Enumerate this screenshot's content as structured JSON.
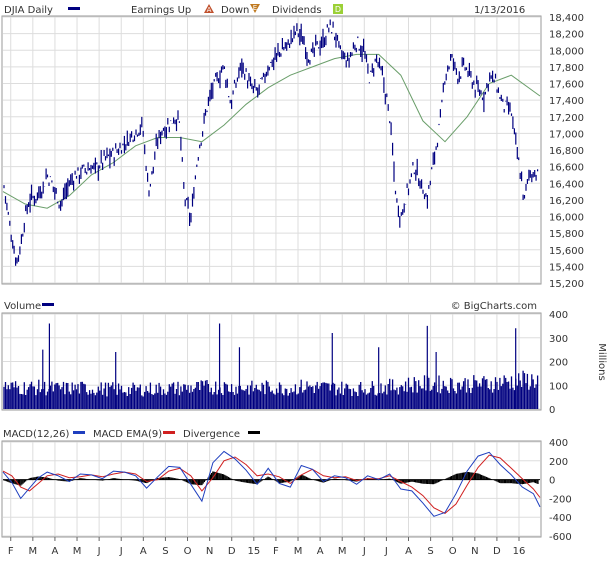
{
  "header": {
    "symbol_label": "DJIA Daily",
    "earnings_up_label": "Earnings Up",
    "earnings_up_glyph": "A",
    "down_label": "Down",
    "down_glyph": "E",
    "dividends_label": "Dividends",
    "dividends_glyph": "D",
    "date": "1/13/2016"
  },
  "volume_header": {
    "label": "Volume",
    "watermark": "© BigCharts.com"
  },
  "macd_header": {
    "macd_label": "MACD(12,26)",
    "ema_label": "MACD EMA(9)",
    "divergence_label": "Divergence"
  },
  "colors": {
    "price": "#000080",
    "ma": "#6a9e6a",
    "volume": "#000080",
    "macd": "#1f3fbf",
    "ema": "#d02020",
    "divergence": "#000000",
    "grid": "#dddddd",
    "border": "#999999",
    "earnings_up": "#c0502c",
    "down": "#c07a20",
    "dividends": "#9bd036"
  },
  "chart_data": [
    {
      "type": "line",
      "title": "DJIA Daily",
      "series_kind": "ohlc-bars + moving average",
      "ylim": [
        15200,
        18400
      ],
      "y_ticks": [
        15200,
        15400,
        15600,
        15800,
        16000,
        16200,
        16400,
        16600,
        16800,
        17000,
        17200,
        17400,
        17600,
        17800,
        18000,
        18200,
        18400
      ],
      "y_tick_labels": [
        "15,200",
        "15,400",
        "15,600",
        "15,800",
        "16,000",
        "16,200",
        "16,400",
        "16,600",
        "16,800",
        "17,000",
        "17,200",
        "17,400",
        "17,600",
        "17,800",
        "18,000",
        "18,200",
        "18,400"
      ],
      "x_tick_labels": [
        "F",
        "M",
        "A",
        "M",
        "J",
        "J",
        "A",
        "S",
        "O",
        "N",
        "D",
        "15",
        "F",
        "M",
        "A",
        "M",
        "J",
        "J",
        "A",
        "S",
        "O",
        "N",
        "D",
        "16"
      ],
      "grid": true,
      "series": [
        {
          "name": "price",
          "x": [
            0,
            0.3,
            0.6,
            0.8,
            1,
            1.2,
            1.5,
            1.8,
            2,
            2.3,
            2.6,
            3,
            3.3,
            3.6,
            4,
            4.3,
            4.6,
            5,
            5.3,
            5.6,
            5.9,
            6.1,
            6.3,
            6.6,
            6.8,
            7,
            7.2,
            7.5,
            7.8,
            8,
            8.2,
            8.5,
            8.8,
            9,
            9.3,
            9.6,
            10,
            10.3,
            10.6,
            10.8,
            11,
            11.2,
            11.5,
            11.8,
            12,
            12.3,
            12.6,
            13,
            13.3,
            13.6,
            13.9,
            14.2,
            14.5,
            14.8,
            15,
            15.3,
            15.6,
            16,
            16.3,
            16.6,
            16.9,
            17.2,
            17.5,
            17.8,
            18,
            18.3,
            18.6,
            18.9,
            19.2,
            19.5,
            19.8,
            20,
            20.3,
            20.6,
            20.9,
            21.2,
            21.5,
            21.8,
            22,
            22.3,
            22.6,
            23,
            23.3,
            23.6,
            23.8,
            24,
            24.3
          ],
          "y": [
            16450,
            15900,
            15450,
            15650,
            16000,
            16200,
            16250,
            16350,
            16500,
            16350,
            16150,
            16400,
            16500,
            16550,
            16580,
            16600,
            16700,
            16750,
            16820,
            16900,
            17000,
            17050,
            17100,
            16300,
            16600,
            16900,
            17050,
            17100,
            17200,
            17100,
            16250,
            15950,
            16700,
            17000,
            17400,
            17600,
            17800,
            17350,
            17650,
            17850,
            17700,
            17550,
            17500,
            17650,
            17800,
            17900,
            18000,
            18100,
            18250,
            18100,
            17900,
            18050,
            18100,
            18300,
            18200,
            17950,
            17850,
            18100,
            18000,
            17650,
            17900,
            17650,
            17200,
            16200,
            16000,
            16300,
            16600,
            16400,
            16200,
            16700,
            17150,
            17700,
            17900,
            17700,
            17800,
            17650,
            17500,
            17450,
            17700,
            17600,
            17350,
            17250,
            16700,
            16200,
            16500,
            16550,
            16450
          ]
        },
        {
          "name": "moving average",
          "x": [
            0,
            1,
            2,
            3,
            4,
            5,
            6,
            7,
            8,
            9,
            10,
            11,
            12,
            13,
            14,
            15,
            16,
            17,
            18,
            19,
            20,
            21,
            22,
            23,
            24.3
          ],
          "y": [
            16300,
            16150,
            16100,
            16250,
            16500,
            16650,
            16850,
            16950,
            16950,
            16900,
            17100,
            17350,
            17550,
            17700,
            17800,
            17900,
            17950,
            17950,
            17700,
            17150,
            16900,
            17200,
            17600,
            17700,
            17450
          ]
        }
      ]
    },
    {
      "type": "bar",
      "title": "Volume",
      "ylabel": "Millions",
      "ylim": [
        0,
        400
      ],
      "y_ticks": [
        0,
        100,
        200,
        300,
        400
      ],
      "y_tick_labels": [
        "0",
        "100",
        "200",
        "300",
        "400"
      ],
      "baseline": [
        100,
        95,
        95,
        90,
        92,
        90,
        88,
        85,
        88,
        90,
        92,
        95,
        98,
        95,
        92,
        95,
        92,
        100,
        95,
        92,
        90,
        95,
        100,
        110,
        110,
        108,
        110,
        112,
        120,
        125,
        130
      ],
      "spikes": [
        {
          "x": 1.8,
          "value": 250
        },
        {
          "x": 2.1,
          "value": 360
        },
        {
          "x": 5.1,
          "value": 240
        },
        {
          "x": 9.8,
          "value": 360
        },
        {
          "x": 10.7,
          "value": 260
        },
        {
          "x": 14.9,
          "value": 320
        },
        {
          "x": 17.0,
          "value": 260
        },
        {
          "x": 19.2,
          "value": 350
        },
        {
          "x": 19.6,
          "value": 240
        },
        {
          "x": 23.2,
          "value": 340
        }
      ]
    },
    {
      "type": "line",
      "title": "MACD",
      "ylim": [
        -600,
        400
      ],
      "y_ticks": [
        -600,
        -400,
        -200,
        0,
        200,
        400
      ],
      "y_tick_labels": [
        "-600",
        "-400",
        "-200",
        "0",
        "200",
        "400"
      ],
      "series": [
        {
          "name": "MACD(12,26)",
          "x": [
            0,
            0.4,
            0.8,
            1.2,
            1.6,
            2,
            2.5,
            3,
            3.5,
            4,
            4.5,
            5,
            5.5,
            6,
            6.5,
            7,
            7.5,
            8,
            8.5,
            9,
            9.5,
            10,
            10.5,
            11,
            11.5,
            12,
            12.5,
            13,
            13.5,
            14,
            14.5,
            15,
            15.5,
            16,
            16.5,
            17,
            17.5,
            18,
            18.5,
            19,
            19.5,
            20,
            20.5,
            21,
            21.5,
            22,
            22.5,
            23,
            23.5,
            24,
            24.3
          ],
          "y": [
            80,
            -30,
            -200,
            -90,
            20,
            80,
            40,
            -20,
            60,
            50,
            10,
            90,
            80,
            40,
            -90,
            30,
            140,
            130,
            -50,
            -230,
            180,
            300,
            220,
            100,
            -50,
            120,
            -40,
            -80,
            150,
            110,
            -20,
            40,
            20,
            -50,
            40,
            0,
            60,
            -100,
            -120,
            -250,
            -390,
            -350,
            -150,
            90,
            250,
            290,
            160,
            50,
            -80,
            -150,
            -290
          ]
        },
        {
          "name": "MACD EMA(9)",
          "x": [
            0,
            0.4,
            0.8,
            1.2,
            1.6,
            2,
            2.5,
            3,
            3.5,
            4,
            4.5,
            5,
            5.5,
            6,
            6.5,
            7,
            7.5,
            8,
            8.5,
            9,
            9.5,
            10,
            10.5,
            11,
            11.5,
            12,
            12.5,
            13,
            13.5,
            14,
            14.5,
            15,
            15.5,
            16,
            16.5,
            17,
            17.5,
            18,
            18.5,
            19,
            19.5,
            20,
            20.5,
            21,
            21.5,
            22,
            22.5,
            23,
            23.5,
            24,
            24.3
          ],
          "y": [
            90,
            40,
            -80,
            -120,
            -40,
            40,
            60,
            20,
            30,
            50,
            30,
            60,
            80,
            60,
            -20,
            0,
            90,
            120,
            40,
            -120,
            20,
            200,
            240,
            160,
            40,
            60,
            30,
            -40,
            50,
            110,
            40,
            20,
            30,
            -10,
            10,
            10,
            40,
            -20,
            -80,
            -170,
            -300,
            -360,
            -260,
            -60,
            130,
            260,
            230,
            120,
            10,
            -100,
            -190
          ]
        }
      ]
    }
  ]
}
